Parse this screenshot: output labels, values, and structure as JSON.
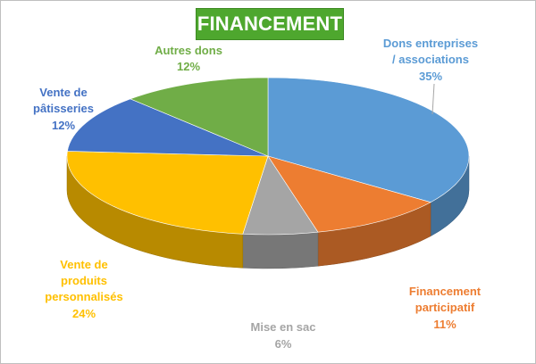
{
  "chart_data": {
    "type": "pie",
    "title": "FINANCEMENT",
    "slices": [
      {
        "label": "Dons entreprises / associations",
        "value": 35,
        "value_label": "35%",
        "color": "#5b9bd5"
      },
      {
        "label": "Financement participatif",
        "value": 11,
        "value_label": "11%",
        "color": "#ed7d31"
      },
      {
        "label": "Mise en sac",
        "value": 6,
        "value_label": "6%",
        "color": "#a5a5a5"
      },
      {
        "label": "Vente de produits personnalisés",
        "value": 24,
        "value_label": "24%",
        "color": "#ffc000"
      },
      {
        "label": "Vente de pâtisseries",
        "value": 12,
        "value_label": "12%",
        "color": "#4472c4"
      },
      {
        "label": "Autres dons",
        "value": 12,
        "value_label": "12%",
        "color": "#70ad47"
      }
    ],
    "style": "3d-pie",
    "legend": "none"
  }
}
